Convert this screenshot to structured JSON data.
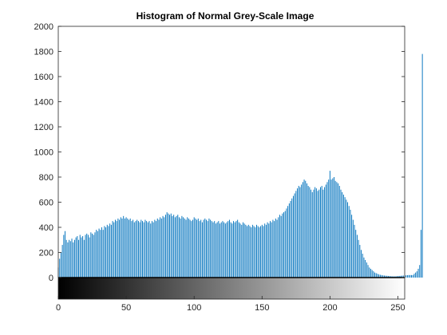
{
  "chart_data": {
    "type": "bar",
    "title": "Histogram of Normal Grey-Scale Image",
    "xlabel": "",
    "ylabel": "",
    "xlim": [
      0,
      255
    ],
    "ylim": [
      0,
      2000
    ],
    "x_ticks": [
      0,
      50,
      100,
      150,
      200,
      250
    ],
    "y_ticks": [
      0,
      200,
      400,
      600,
      800,
      1000,
      1200,
      1400,
      1600,
      1800,
      2000
    ],
    "bar_color": "#0072BD",
    "grid": false,
    "colorbar": {
      "orientation": "horizontal",
      "position": "below-axes",
      "colormap": "gray",
      "range": [
        0,
        255
      ]
    },
    "bins": {
      "start": 0,
      "step": 1,
      "values": [
        80,
        150,
        200,
        260,
        340,
        370,
        300,
        280,
        300,
        290,
        310,
        280,
        300,
        320,
        330,
        300,
        340,
        320,
        330,
        300,
        340,
        350,
        340,
        320,
        360,
        350,
        340,
        360,
        380,
        370,
        390,
        380,
        400,
        380,
        410,
        400,
        420,
        410,
        430,
        420,
        450,
        440,
        460,
        450,
        470,
        460,
        480,
        470,
        490,
        470,
        480,
        470,
        460,
        470,
        450,
        460,
        440,
        450,
        460,
        450,
        440,
        460,
        450,
        440,
        460,
        450,
        440,
        450,
        430,
        450,
        440,
        460,
        450,
        470,
        460,
        480,
        470,
        490,
        480,
        500,
        520,
        510,
        500,
        510,
        490,
        500,
        480,
        490,
        500,
        480,
        470,
        490,
        480,
        470,
        460,
        480,
        470,
        460,
        450,
        460,
        480,
        470,
        460,
        470,
        450,
        460,
        440,
        460,
        470,
        460,
        450,
        470,
        460,
        450,
        440,
        450,
        430,
        440,
        450,
        430,
        440,
        450,
        440,
        430,
        440,
        450,
        460,
        440,
        430,
        450,
        440,
        450,
        460,
        440,
        430,
        420,
        440,
        430,
        420,
        410,
        420,
        410,
        400,
        420,
        410,
        400,
        420,
        410,
        400,
        410,
        420,
        410,
        430,
        420,
        440,
        430,
        450,
        440,
        460,
        450,
        470,
        460,
        480,
        500,
        490,
        510,
        520,
        530,
        550,
        570,
        590,
        610,
        630,
        650,
        670,
        690,
        710,
        730,
        720,
        740,
        760,
        780,
        770,
        750,
        730,
        720,
        700,
        680,
        700,
        720,
        710,
        690,
        700,
        720,
        730,
        700,
        720,
        740,
        760,
        780,
        850,
        780,
        790,
        800,
        770,
        760,
        750,
        730,
        700,
        680,
        660,
        640,
        620,
        600,
        570,
        540,
        500,
        460,
        420,
        380,
        340,
        300,
        260,
        220,
        190,
        160,
        140,
        120,
        100,
        80,
        70,
        60,
        50,
        40,
        35,
        30,
        25,
        22,
        20,
        18,
        16,
        15,
        14,
        13,
        12,
        11,
        10,
        10,
        10,
        11,
        12,
        13,
        14,
        15,
        16,
        17,
        18,
        19,
        20,
        20,
        20,
        20,
        30,
        40,
        50,
        70,
        100,
        380,
        1780
      ]
    }
  }
}
